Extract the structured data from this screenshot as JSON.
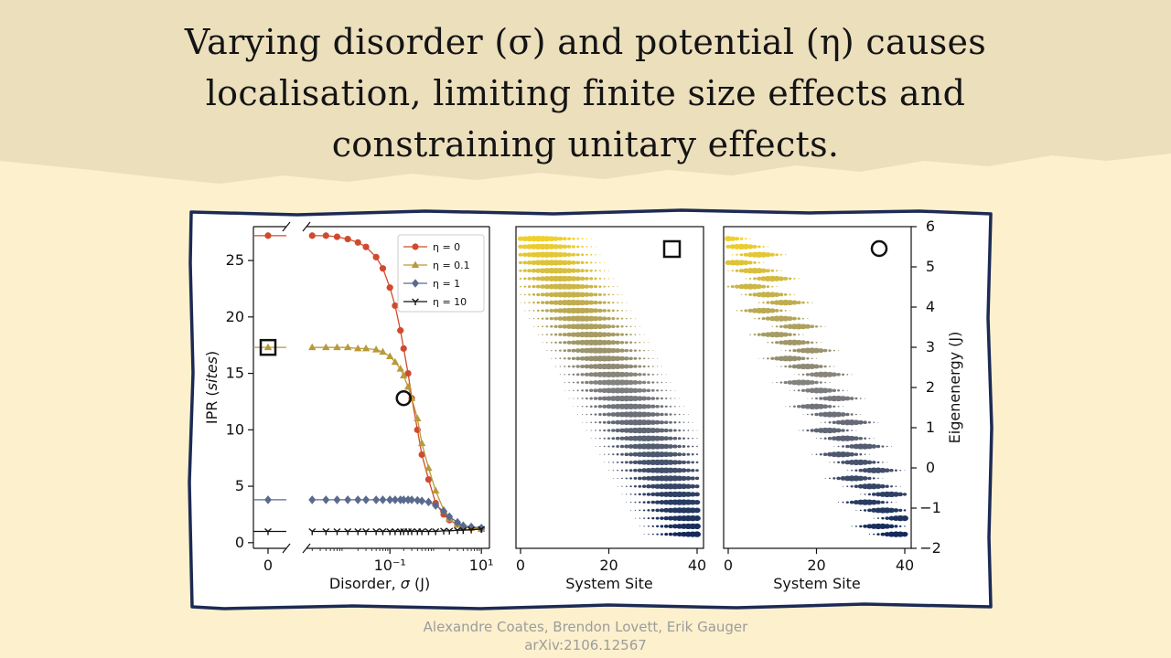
{
  "slide": {
    "title_lines": [
      "Varying disorder (σ) and potential (η) causes",
      "localisation, limiting finite size effects and",
      "constraining unitary effects."
    ],
    "colors": {
      "background": "#fdf0cd",
      "header_band": "#ecdfbc",
      "frame": "#1c2a55"
    }
  },
  "credits": {
    "authors": "Alexandre Coates, Brendon Lovett, Erik Gauger",
    "arxiv": "arXiv:2106.12567"
  },
  "chart_data": [
    {
      "type": "line",
      "panel": "left",
      "xlabel": "Disorder, σ (J)",
      "ylabel": "IPR (sites)",
      "xscale": "log",
      "xlim": [
        0.0015,
        15
      ],
      "ylim": [
        -0.5,
        28
      ],
      "broken_axis": true,
      "zero_column_tick": "0",
      "xticks": [
        {
          "value": 0.1,
          "label": "10⁻¹"
        },
        {
          "value": 10,
          "label": "10¹"
        }
      ],
      "yticks": [
        0,
        5,
        10,
        15,
        20,
        25
      ],
      "legend_position": "top-right",
      "zero_values": {
        "η = 0": 27.2,
        "η = 0.1": 17.3,
        "η = 1": 3.8,
        "η = 10": 1.0
      },
      "x": [
        0.002,
        0.004,
        0.007,
        0.012,
        0.02,
        0.03,
        0.05,
        0.07,
        0.1,
        0.13,
        0.17,
        0.2,
        0.25,
        0.3,
        0.4,
        0.5,
        0.7,
        1.0,
        1.5,
        2.0,
        3.0,
        4.0,
        6.0,
        10.0
      ],
      "series": [
        {
          "name": "η = 0",
          "color": "#d04a2e",
          "marker": "circle",
          "values": [
            27.2,
            27.2,
            27.1,
            26.9,
            26.6,
            26.2,
            25.3,
            24.3,
            22.6,
            21.0,
            18.8,
            17.2,
            15.0,
            12.8,
            10.0,
            7.8,
            5.6,
            3.5,
            2.5,
            2.0,
            1.6,
            1.4,
            1.3,
            1.2
          ]
        },
        {
          "name": "η = 0.1",
          "color": "#b89a3a",
          "marker": "triangle",
          "values": [
            17.3,
            17.3,
            17.3,
            17.3,
            17.2,
            17.2,
            17.1,
            16.9,
            16.5,
            16.0,
            15.4,
            14.8,
            13.8,
            12.8,
            11.0,
            8.8,
            6.6,
            4.6,
            2.9,
            2.1,
            1.6,
            1.4,
            1.3,
            1.2
          ]
        },
        {
          "name": "η = 1",
          "color": "#5a6a8e",
          "marker": "diamond",
          "values": [
            3.8,
            3.8,
            3.8,
            3.8,
            3.8,
            3.8,
            3.8,
            3.8,
            3.8,
            3.8,
            3.8,
            3.8,
            3.8,
            3.8,
            3.75,
            3.7,
            3.6,
            3.3,
            2.8,
            2.3,
            1.8,
            1.5,
            1.4,
            1.3
          ]
        },
        {
          "name": "η = 10",
          "color": "#111111",
          "marker": "tri-down",
          "values": [
            1.0,
            1.0,
            1.0,
            1.0,
            1.0,
            1.0,
            1.0,
            1.0,
            1.0,
            1.0,
            1.0,
            1.0,
            1.0,
            1.0,
            1.0,
            1.0,
            1.0,
            1.0,
            1.05,
            1.05,
            1.1,
            1.1,
            1.15,
            1.2
          ]
        }
      ],
      "annotations": [
        {
          "shape": "square",
          "x": 0,
          "y": 17.3
        },
        {
          "shape": "circle",
          "x": 0.2,
          "y": 12.8
        }
      ]
    },
    {
      "type": "scatter",
      "panel": "middle",
      "xlabel": "System Site",
      "xlim": [
        0,
        40
      ],
      "ylim": [
        -2,
        6
      ],
      "xticks": [
        0,
        20,
        40
      ],
      "marker_annotation": "square",
      "description": "eigenstate site amplitudes, delocalised diagonal band"
    },
    {
      "type": "scatter",
      "panel": "right",
      "xlabel": "System Site",
      "ylabel": "Eigenenergy (J)",
      "xlim": [
        0,
        40
      ],
      "ylim": [
        -2,
        6
      ],
      "xticks": [
        0,
        20,
        40
      ],
      "yticks": [
        -2,
        -1,
        0,
        1,
        2,
        3,
        4,
        5,
        6
      ],
      "marker_annotation": "circle",
      "description": "eigenstate site amplitudes, more localised"
    }
  ]
}
